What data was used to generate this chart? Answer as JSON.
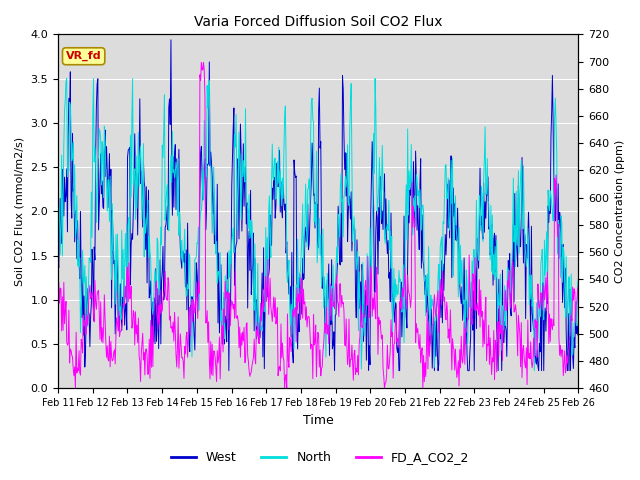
{
  "title": "Varia Forced Diffusion Soil CO2 Flux",
  "xlabel": "Time",
  "ylabel_left": "Soil CO2 Flux (mmol/m2/s)",
  "ylabel_right": "CO2 Concentration (ppm)",
  "ylim_left": [
    0.0,
    4.0
  ],
  "ylim_right": [
    460,
    720
  ],
  "yticks_left": [
    0.0,
    0.5,
    1.0,
    1.5,
    2.0,
    2.5,
    3.0,
    3.5,
    4.0
  ],
  "yticks_right": [
    460,
    480,
    500,
    520,
    540,
    560,
    580,
    600,
    620,
    640,
    660,
    680,
    700,
    720
  ],
  "xtick_labels": [
    "Feb 11",
    "Feb 12",
    "Feb 13",
    "Feb 14",
    "Feb 15",
    "Feb 16",
    "Feb 17",
    "Feb 18",
    "Feb 19",
    "Feb 20",
    "Feb 21",
    "Feb 22",
    "Feb 23",
    "Feb 24",
    "Feb 25",
    "Feb 26"
  ],
  "color_west": "#0000CC",
  "color_north": "#00DDDD",
  "color_co2": "#FF00FF",
  "label_west": "West",
  "label_north": "North",
  "label_co2": "FD_A_CO2_2",
  "annotation_text": "VR_fd",
  "annotation_bg": "#FFFF99",
  "annotation_fg": "#CC0000",
  "bg_color": "#DCDCDC",
  "seed": 42
}
